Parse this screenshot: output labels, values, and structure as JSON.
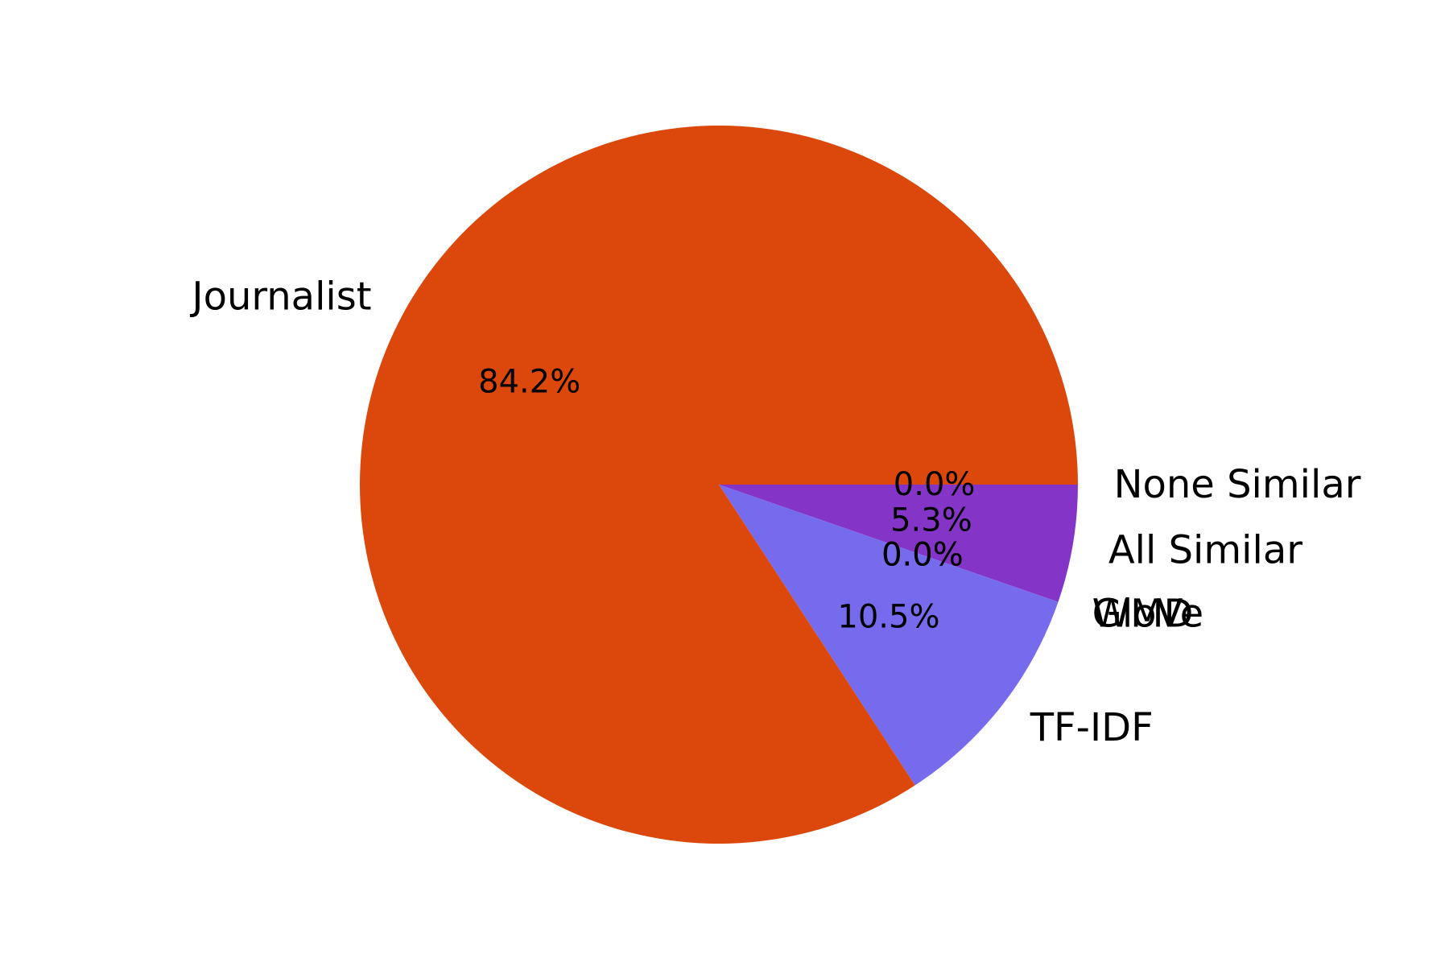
{
  "chart_data": {
    "type": "pie",
    "title": "",
    "slices": [
      {
        "label": "None Similar",
        "value": 0.0,
        "pct_label": "0.0%",
        "color": "#ffa500"
      },
      {
        "label": "All Similar",
        "value": 5.3,
        "pct_label": "5.3%",
        "color": "#8435c8"
      },
      {
        "label": "WMD",
        "value": 0.0,
        "pct_label": "0.0%",
        "color": "#4b0082"
      },
      {
        "label": "GloVe",
        "value": 0.0,
        "pct_label": "0.0%",
        "color": "#00a2d6"
      },
      {
        "label": "TF-IDF",
        "value": 10.5,
        "pct_label": "10.5%",
        "color": "#766aed"
      },
      {
        "label": "Journalist",
        "value": 84.2,
        "pct_label": "84.2%",
        "color": "#dc470b"
      }
    ],
    "start_angle_deg": 0,
    "direction": "clockwise",
    "legend": "none"
  }
}
